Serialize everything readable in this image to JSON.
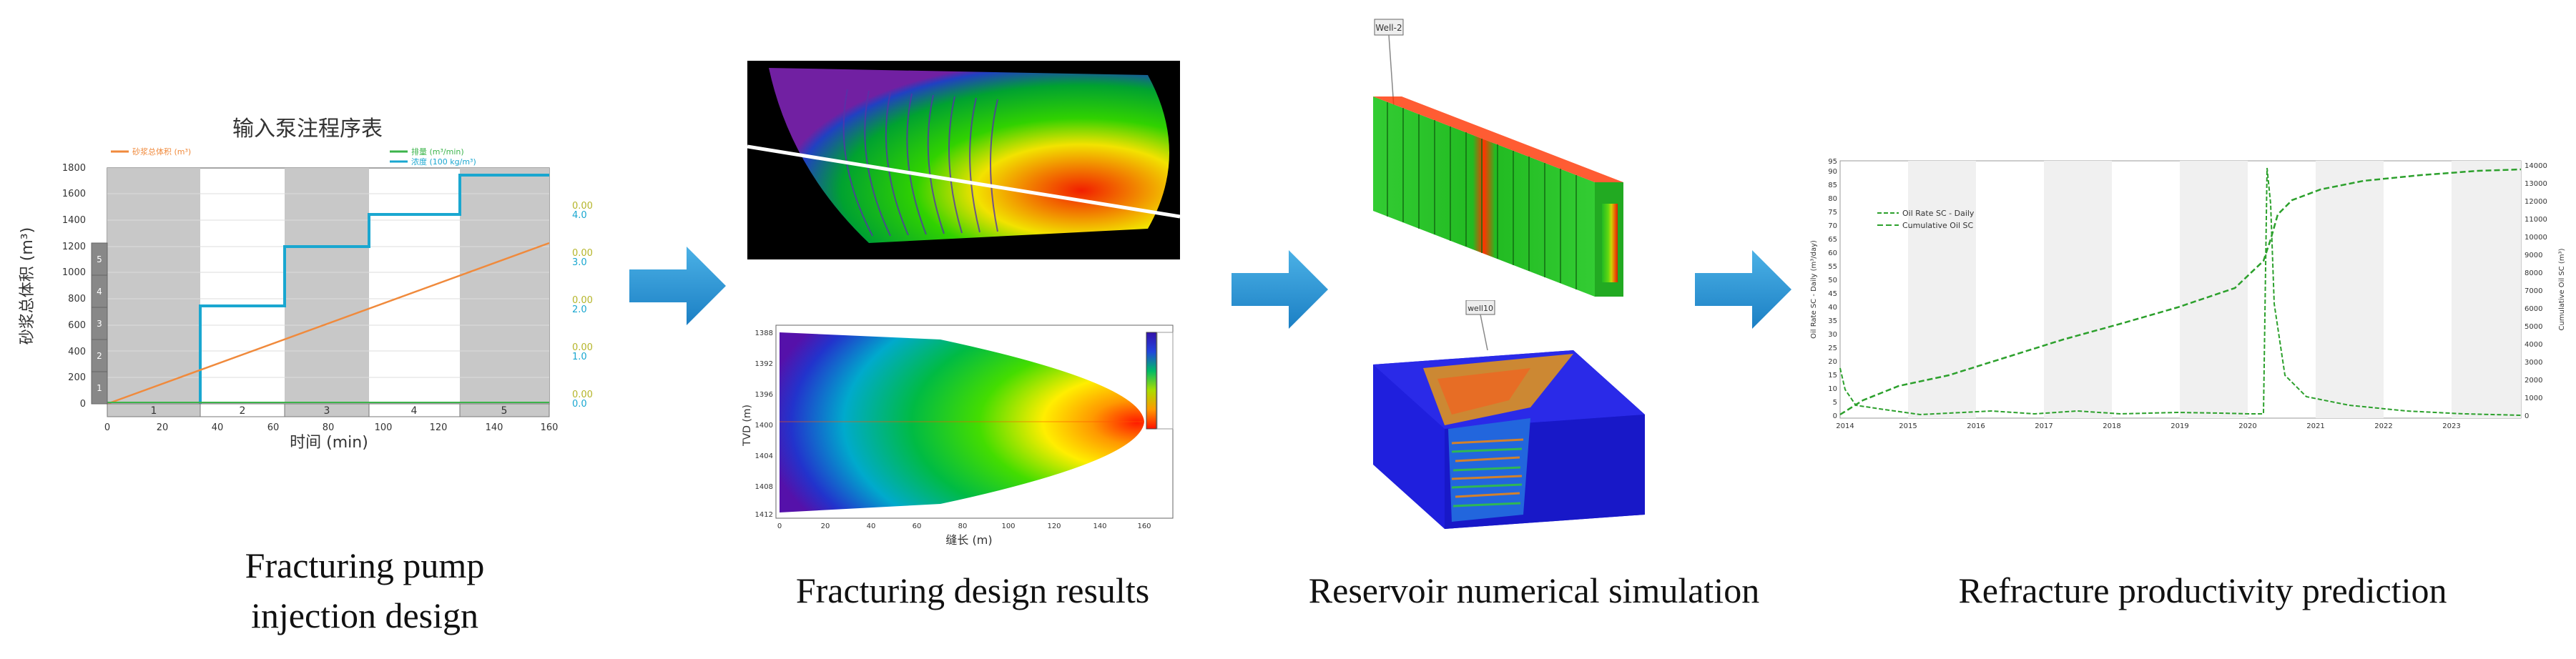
{
  "captions": {
    "pump_line1": "Fracturing pump",
    "pump_line2": "injection design",
    "design": "Fracturing design results",
    "reservoir": "Reservoir numerical simulation",
    "refracture": "Refracture productivity prediction"
  },
  "pump_chart": {
    "title": "输入泵注程序表",
    "ylabel": "砂浆总体积 (m³)",
    "xlabel": "时间 (min)",
    "legend": [
      "砂浆总体积 (m³)",
      "排量 (m³/min)",
      "浓度 (100 kg/m³)"
    ],
    "x_ticks": [
      "0",
      "20",
      "40",
      "60",
      "80",
      "100",
      "120",
      "140",
      "160"
    ],
    "y_ticks": [
      "0",
      "200",
      "400",
      "600",
      "800",
      "1000",
      "1200",
      "1400",
      "1600",
      "1800"
    ],
    "right1_ticks": [
      "0.0",
      "1.0",
      "2.0",
      "3.0",
      "4.0"
    ],
    "right2_ticks": [
      "0.0000",
      "0.0004",
      "0.0008",
      "0.0012",
      "0.0016"
    ],
    "stage_labels": [
      "1",
      "2",
      "3",
      "4",
      "5"
    ],
    "left_stage_labels": [
      "1",
      "2",
      "3",
      "4",
      "5"
    ],
    "colors": {
      "volume": "#f08a3c",
      "rate": "#3cb44b",
      "conc": "#1aa7d0",
      "gray": "#c8c8c8"
    }
  },
  "frac_profile": {
    "ylabel": "TVD (m)",
    "xlabel": "缝长 (m)",
    "x_ticks": [
      "0",
      "20",
      "40",
      "60",
      "80",
      "100",
      "120",
      "140",
      "160"
    ],
    "y_ticks": [
      "1388",
      "1392",
      "1396",
      "1400",
      "1404",
      "1408",
      "1412"
    ]
  },
  "well_labels": {
    "top": "Well-2",
    "bottom": "well10"
  },
  "prod_chart": {
    "x_ticks": [
      "2014",
      "2015",
      "2016",
      "2017",
      "2018",
      "2019",
      "2020",
      "2021",
      "2022",
      "2023"
    ],
    "y_left_ticks": [
      "0",
      "5",
      "10",
      "15",
      "20",
      "25",
      "30",
      "35",
      "40",
      "45",
      "50",
      "55",
      "60",
      "65",
      "70",
      "75",
      "80",
      "85",
      "90",
      "95"
    ],
    "y_right_ticks": [
      "0",
      "1000",
      "2000",
      "3000",
      "4000",
      "5000",
      "6000",
      "7000",
      "8000",
      "9000",
      "10000",
      "11000",
      "12000",
      "13000",
      "14000"
    ],
    "ylabel_left": "Oil Rate SC - Daily (m³/day)",
    "ylabel_right": "Cumulative Oil SC (m³)",
    "legend": [
      "Oil Rate SC - Daily",
      "Cumulative Oil SC"
    ],
    "color": "#2ca02c"
  }
}
